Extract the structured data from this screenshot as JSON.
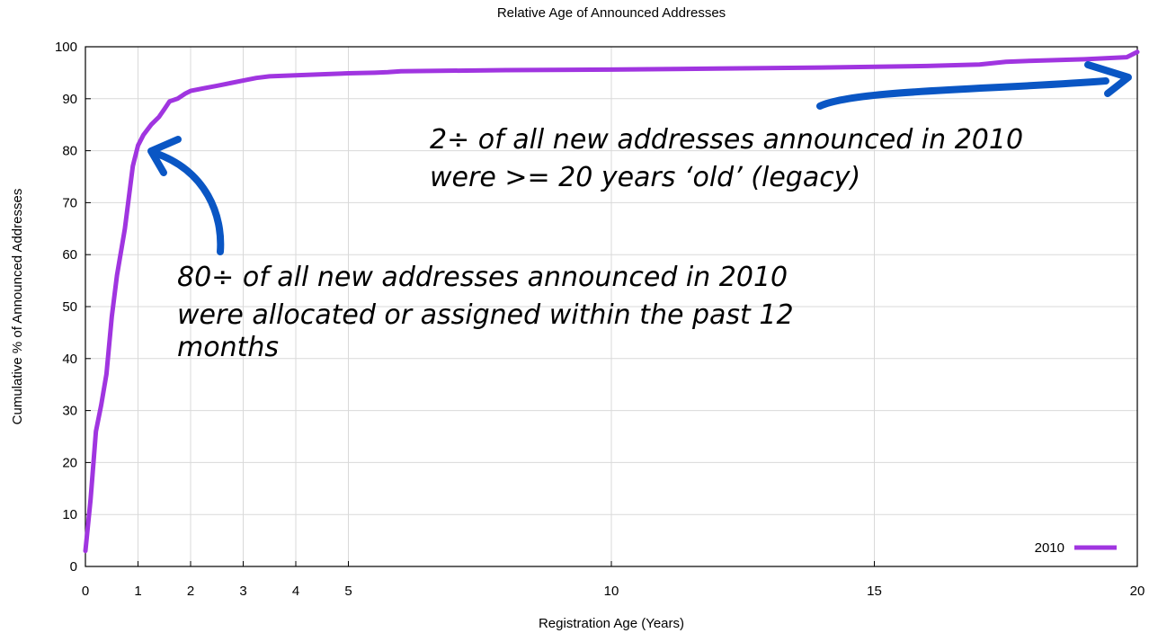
{
  "chart_data": {
    "type": "line",
    "title": "Relative Age of Announced Addresses",
    "xlabel": "Registration Age (Years)",
    "ylabel": "Cumulative % of Announced Addresses",
    "xlim": [
      0,
      20
    ],
    "ylim": [
      0,
      100
    ],
    "x_ticks": [
      0,
      1,
      2,
      3,
      4,
      5,
      10,
      15,
      20
    ],
    "y_ticks": [
      0,
      10,
      20,
      30,
      40,
      50,
      60,
      70,
      80,
      90,
      100
    ],
    "grid": true,
    "legend_position": "bottom-right",
    "series": [
      {
        "name": "2010",
        "color": "#a035e0",
        "x": [
          0,
          0.1,
          0.2,
          0.3,
          0.4,
          0.5,
          0.6,
          0.75,
          0.9,
          1.0,
          1.1,
          1.25,
          1.4,
          1.5,
          1.6,
          1.75,
          1.9,
          2.0,
          2.25,
          2.5,
          2.75,
          3.0,
          3.25,
          3.5,
          4.0,
          4.5,
          5.0,
          5.5,
          5.75,
          6.0,
          8.0,
          10.0,
          12.0,
          14.0,
          16.0,
          17.0,
          17.5,
          18.0,
          19.0,
          19.8,
          20.0
        ],
        "y": [
          3,
          13,
          26,
          31,
          37,
          48,
          56,
          65,
          77,
          81,
          83,
          85,
          86.5,
          88,
          89.5,
          90,
          91,
          91.5,
          92,
          92.5,
          93,
          93.5,
          94,
          94.3,
          94.5,
          94.7,
          94.9,
          95,
          95.1,
          95.3,
          95.5,
          95.6,
          95.8,
          96,
          96.3,
          96.6,
          97.1,
          97.3,
          97.6,
          98,
          99
        ]
      }
    ],
    "annotations": [
      {
        "lines": [
          "2÷ of all new addresses announced in 2010",
          "were >= 20 years ‘old’ (legacy)"
        ],
        "arrow_color": "#0a56c4"
      },
      {
        "lines": [
          "80÷ of all new addresses announced in 2010",
          "were allocated or assigned within the past 12",
          "months"
        ],
        "arrow_color": "#0a56c4"
      }
    ]
  }
}
